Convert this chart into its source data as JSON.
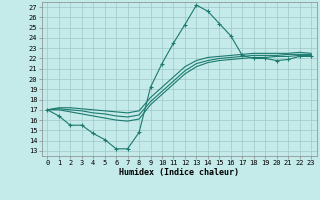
{
  "title": "",
  "xlabel": "Humidex (Indice chaleur)",
  "ylabel": "",
  "background_color": "#c5eaea",
  "grid_color": "#a0c8c8",
  "line_color": "#1a7a6e",
  "xlim": [
    -0.5,
    23.5
  ],
  "ylim": [
    12.5,
    27.5
  ],
  "xticks": [
    0,
    1,
    2,
    3,
    4,
    5,
    6,
    7,
    8,
    9,
    10,
    11,
    12,
    13,
    14,
    15,
    16,
    17,
    18,
    19,
    20,
    21,
    22,
    23
  ],
  "yticks": [
    13,
    14,
    15,
    16,
    17,
    18,
    19,
    20,
    21,
    22,
    23,
    24,
    25,
    26,
    27
  ],
  "line1_x": [
    0,
    1,
    2,
    3,
    4,
    5,
    6,
    7,
    8,
    9,
    10,
    11,
    12,
    13,
    14,
    15,
    16,
    17,
    18,
    19,
    20,
    21,
    22,
    23
  ],
  "line1_y": [
    17.0,
    16.4,
    15.5,
    15.5,
    14.7,
    14.1,
    13.2,
    13.2,
    14.8,
    19.2,
    21.5,
    23.5,
    25.3,
    27.2,
    26.6,
    25.4,
    24.2,
    22.3,
    22.0,
    22.0,
    21.8,
    21.9,
    22.2,
    22.2
  ],
  "line2_x": [
    0,
    1,
    2,
    3,
    4,
    5,
    6,
    7,
    8,
    9,
    10,
    11,
    12,
    13,
    14,
    15,
    16,
    17,
    18,
    19,
    20,
    21,
    22,
    23
  ],
  "line2_y": [
    17.0,
    17.0,
    16.8,
    16.6,
    16.4,
    16.2,
    16.0,
    15.9,
    16.1,
    17.5,
    18.5,
    19.5,
    20.5,
    21.2,
    21.6,
    21.8,
    21.9,
    22.0,
    22.1,
    22.1,
    22.2,
    22.2,
    22.3,
    22.3
  ],
  "line3_x": [
    0,
    1,
    2,
    3,
    4,
    5,
    6,
    7,
    8,
    9,
    10,
    11,
    12,
    13,
    14,
    15,
    16,
    17,
    18,
    19,
    20,
    21,
    22,
    23
  ],
  "line3_y": [
    17.0,
    17.1,
    17.0,
    16.9,
    16.7,
    16.6,
    16.4,
    16.3,
    16.5,
    17.8,
    18.8,
    19.8,
    20.8,
    21.5,
    21.8,
    22.0,
    22.1,
    22.2,
    22.3,
    22.3,
    22.3,
    22.4,
    22.4,
    22.4
  ],
  "line4_x": [
    0,
    1,
    2,
    3,
    4,
    5,
    6,
    7,
    8,
    9,
    10,
    11,
    12,
    13,
    14,
    15,
    16,
    17,
    18,
    19,
    20,
    21,
    22,
    23
  ],
  "line4_y": [
    17.0,
    17.2,
    17.2,
    17.1,
    17.0,
    16.9,
    16.8,
    16.7,
    16.9,
    18.2,
    19.2,
    20.2,
    21.2,
    21.8,
    22.1,
    22.2,
    22.3,
    22.4,
    22.5,
    22.5,
    22.5,
    22.5,
    22.6,
    22.5
  ],
  "tick_fontsize": 5,
  "xlabel_fontsize": 6
}
